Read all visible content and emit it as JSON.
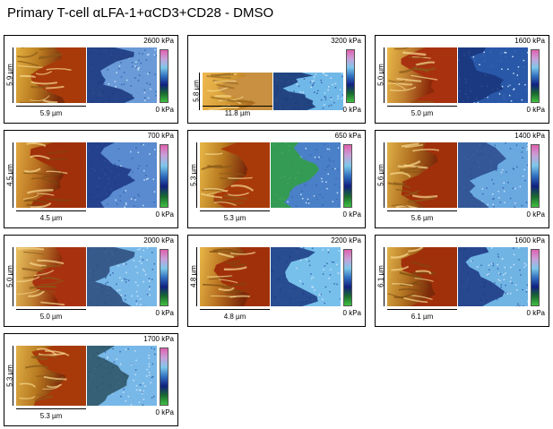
{
  "title": "Primary T-cell αLFA-1+αCD3+CD28 - DMSO",
  "colorbar": {
    "stops": [
      "#e060b0",
      "#c8a0d8",
      "#7ec8ea",
      "#3070c0",
      "#102080",
      "#1a6a30",
      "#40c040"
    ]
  },
  "panels": [
    {
      "side": "5.9 µm",
      "bottom": "5.9 µm",
      "max": "2600 kPa",
      "min": "0 kPa",
      "topo": [
        "#e4b040",
        "#8a5a18",
        "#b87a20"
      ],
      "topo_edge": "#7a2a0a",
      "topo_base": "#a83a0a",
      "stiff_base": "#6a9ad8",
      "stiff_dark": "#18347a"
    },
    {
      "side": "5.8 µm",
      "bottom": "11.8 µm",
      "max": "3200 kPa",
      "min": "0 kPa",
      "topo": [
        "#f0b850",
        "#9a6a20",
        "#d8a038"
      ],
      "topo_edge": "#b07020",
      "topo_base": "#c89040",
      "stiff_base": "#70b8e8",
      "stiff_dark": "#143070"
    },
    {
      "side": "5.0 µm",
      "bottom": "5.0 µm",
      "max": "1600 kPa",
      "min": "0 kPa",
      "topo": [
        "#e8b848",
        "#8a5a18",
        "#c08030"
      ],
      "topo_edge": "#8a2808",
      "topo_base": "#a83210",
      "stiff_base": "#2a58a8",
      "stiff_dark": "#18347a"
    },
    {
      "side": "4.5 µm",
      "bottom": "4.5 µm",
      "max": "700 kPa",
      "min": "0 kPa",
      "topo": [
        "#e0a840",
        "#7a4a10",
        "#b87020"
      ],
      "topo_edge": "#7a2808",
      "topo_base": "#a0300a",
      "stiff_base": "#5a8ad0",
      "stiff_dark": "#1a3480"
    },
    {
      "side": "5.3 µm",
      "bottom": "5.3 µm",
      "max": "650 kPa",
      "min": "0 kPa",
      "topo": [
        "#e8b848",
        "#8a5a18",
        "#b87a20"
      ],
      "topo_edge": "#7a2a0a",
      "topo_base": "#a83a0a",
      "stiff_base": "#4a80c8",
      "stiff_dark": "#30a040"
    },
    {
      "side": "5.6 µm",
      "bottom": "5.6 µm",
      "max": "1400 kPa",
      "min": "0 kPa",
      "topo": [
        "#e0b048",
        "#8a5a18",
        "#b07020"
      ],
      "topo_edge": "#7a2808",
      "topo_base": "#a0300a",
      "stiff_base": "#6aa8e0",
      "stiff_dark": "#2a4a8a"
    },
    {
      "side": "5.0 µm",
      "bottom": "5.0 µm",
      "max": "2000 kPa",
      "min": "0 kPa",
      "topo": [
        "#e8c060",
        "#8a5a18",
        "#c08030"
      ],
      "topo_edge": "#8a2808",
      "topo_base": "#a83210",
      "stiff_base": "#78b8e8",
      "stiff_dark": "#2a4a7a"
    },
    {
      "side": "4.8 µm",
      "bottom": "4.8 µm",
      "max": "2200 kPa",
      "min": "0 kPa",
      "topo": [
        "#e8b848",
        "#7a4a10",
        "#b87020"
      ],
      "topo_edge": "#7a2808",
      "topo_base": "#a0300a",
      "stiff_base": "#78c0ec",
      "stiff_dark": "#1a3880"
    },
    {
      "side": "6.1 µm",
      "bottom": "6.1 µm",
      "max": "1600 kPa",
      "min": "0 kPa",
      "topo": [
        "#e0b048",
        "#7a4a10",
        "#b07020"
      ],
      "topo_edge": "#7a2808",
      "topo_base": "#a0300a",
      "stiff_base": "#70b4e4",
      "stiff_dark": "#1a3480"
    },
    {
      "side": "5.3 µm",
      "bottom": "5.3 µm",
      "max": "1700 kPa",
      "min": "0 kPa",
      "topo": [
        "#e0b048",
        "#8a5a18",
        "#b87a20"
      ],
      "topo_edge": "#7a2a0a",
      "topo_base": "#a83a0a",
      "stiff_base": "#78b8e8",
      "stiff_dark": "#2a5060"
    }
  ]
}
